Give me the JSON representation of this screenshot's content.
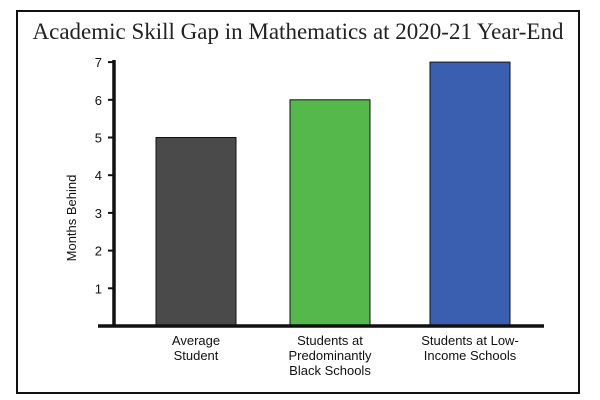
{
  "chart_data": {
    "type": "bar",
    "title": "Academic Skill Gap in Mathematics at 2020-21 Year-End",
    "xlabel": "",
    "ylabel": "Months Behind",
    "ylim": [
      0,
      7
    ],
    "yticks": [
      "1",
      "2",
      "3",
      "4",
      "5",
      "6",
      "7"
    ],
    "grid": false,
    "categories": [
      [
        "Average",
        "Student"
      ],
      [
        "Students at",
        "Predominantly",
        "Black Schools"
      ],
      [
        "Students at Low-",
        "Income Schools"
      ]
    ],
    "values": [
      5,
      6,
      7
    ],
    "colors": [
      "#4a4a4a",
      "#55b84a",
      "#3a5fb0"
    ]
  }
}
